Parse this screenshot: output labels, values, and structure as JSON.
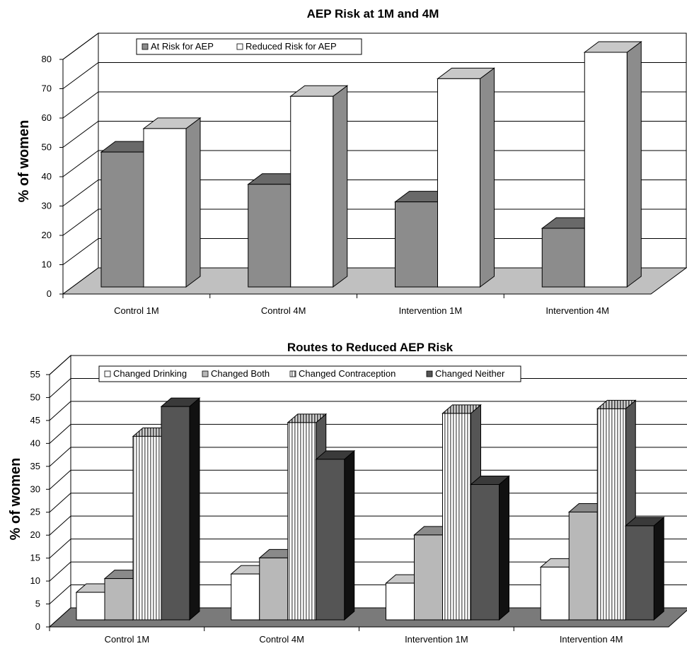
{
  "chart_data": [
    {
      "type": "bar",
      "title": "AEP Risk at 1M and 4M",
      "ylabel": "% of women",
      "xlabel": "",
      "ylim": [
        0,
        80
      ],
      "yticks": [
        0,
        10,
        20,
        30,
        40,
        50,
        60,
        70,
        80
      ],
      "categories": [
        "Control 1M",
        "Control 4M",
        "Intervention 1M",
        "Intervention 4M"
      ],
      "series": [
        {
          "name": "At Risk for AEP",
          "values": [
            46,
            35,
            29,
            20
          ],
          "color": "#8c8c8c"
        },
        {
          "name": "Reduced Risk for AEP",
          "values": [
            54,
            65,
            71,
            80
          ],
          "color": "#ffffff"
        }
      ],
      "legend": "top-left",
      "grid": true
    },
    {
      "type": "bar",
      "title": "Routes to Reduced AEP Risk",
      "ylabel": "% of women",
      "xlabel": "",
      "ylim": [
        0,
        55
      ],
      "yticks": [
        0,
        5,
        10,
        15,
        20,
        25,
        30,
        35,
        40,
        45,
        50,
        55
      ],
      "categories": [
        "Control 1M",
        "Control 4M",
        "Intervention 1M",
        "Intervention 4M"
      ],
      "series": [
        {
          "name": "Changed Drinking",
          "values": [
            6,
            10,
            8,
            11.5
          ],
          "color": "#ffffff"
        },
        {
          "name": "Changed Both",
          "values": [
            9,
            13.5,
            18.5,
            23.5
          ],
          "color": "#b8b8b8"
        },
        {
          "name": "Changed Contraception",
          "values": [
            40,
            43,
            45,
            46
          ],
          "color": "striped"
        },
        {
          "name": "Changed Neither",
          "values": [
            46.5,
            35,
            29.5,
            20.5
          ],
          "color": "#555555"
        }
      ],
      "legend": "top",
      "grid": true
    }
  ]
}
